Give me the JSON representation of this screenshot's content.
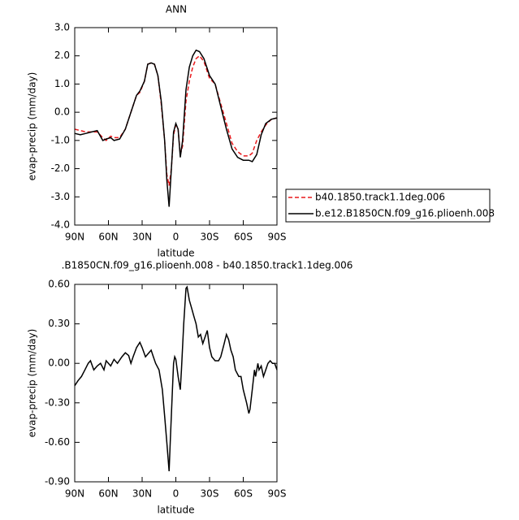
{
  "chart_data": [
    {
      "type": "line",
      "title": "ANN",
      "xlabel": "latitude",
      "ylabel": "evap-precip (mm/day)",
      "x": [
        90,
        85,
        80,
        75,
        70,
        65,
        62,
        58,
        55,
        50,
        45,
        40,
        35,
        32,
        28,
        25,
        22,
        19,
        16,
        13,
        10,
        8,
        6,
        4,
        2,
        0,
        -2,
        -4,
        -6,
        -9,
        -12,
        -15,
        -18,
        -21,
        -25,
        -30,
        -35,
        -40,
        -45,
        -50,
        -55,
        -60,
        -65,
        -68,
        -72,
        -76,
        -80,
        -85,
        -90
      ],
      "xlim": [
        90,
        -90
      ],
      "xticks": [
        {
          "value": 90,
          "label": "90N"
        },
        {
          "value": 60,
          "label": "60N"
        },
        {
          "value": 30,
          "label": "30N"
        },
        0,
        {
          "value": -30,
          "label": "30S"
        },
        {
          "value": -60,
          "label": "60S"
        },
        {
          "value": -90,
          "label": "90S"
        }
      ],
      "ylim": [
        -4,
        3
      ],
      "yticks": [
        {
          "value": 3,
          "label": "3.0"
        },
        {
          "value": 2,
          "label": "2.0"
        },
        {
          "value": 1,
          "label": "1.0"
        },
        {
          "value": 0,
          "label": "0.0"
        },
        {
          "value": -1,
          "label": "-1.0"
        },
        {
          "value": -2,
          "label": "-2.0"
        },
        {
          "value": -3,
          "label": "-3.0"
        },
        {
          "value": -4,
          "label": "-4.0"
        }
      ],
      "legend": "outside-right",
      "series": [
        {
          "name": "b40.1850.track1.1deg.006",
          "color": "#e8191c",
          "line_style": "dashed",
          "values": [
            -0.6,
            -0.65,
            -0.7,
            -0.7,
            -0.7,
            -0.9,
            -1.0,
            -0.85,
            -0.9,
            -0.9,
            -0.6,
            0.0,
            0.6,
            0.7,
            1.1,
            1.7,
            1.75,
            1.7,
            1.3,
            0.3,
            -1.0,
            -2.2,
            -2.6,
            -2.0,
            -0.8,
            -0.45,
            -0.6,
            -1.5,
            -1.2,
            0.4,
            1.1,
            1.6,
            1.9,
            2.0,
            1.8,
            1.2,
            1.0,
            0.3,
            -0.4,
            -1.1,
            -1.4,
            -1.55,
            -1.55,
            -1.45,
            -1.0,
            -0.7,
            -0.45,
            -0.25,
            -0.2
          ]
        },
        {
          "name": "b.e12.B1850CN.f09_g16.plioenh.008",
          "color": "#000000",
          "line_style": "solid",
          "values": [
            -0.75,
            -0.8,
            -0.75,
            -0.7,
            -0.65,
            -1.0,
            -0.95,
            -0.9,
            -1.0,
            -0.95,
            -0.6,
            0.0,
            0.6,
            0.75,
            1.1,
            1.7,
            1.75,
            1.7,
            1.3,
            0.4,
            -1.0,
            -2.4,
            -3.35,
            -2.0,
            -0.7,
            -0.4,
            -0.6,
            -1.6,
            -1.0,
            0.8,
            1.6,
            2.0,
            2.2,
            2.15,
            1.9,
            1.3,
            1.0,
            0.2,
            -0.6,
            -1.3,
            -1.6,
            -1.7,
            -1.7,
            -1.75,
            -1.5,
            -0.8,
            -0.4,
            -0.25,
            -0.2
          ]
        }
      ]
    },
    {
      "type": "line",
      "title": ".B1850CN.f09_g16.plioenh.008 - b40.1850.track1.1deg.006",
      "xlabel": "latitude",
      "ylabel": "evap-precip (mm/day)",
      "x": [
        90,
        87,
        84,
        81,
        78,
        76,
        73,
        70,
        67,
        64,
        62,
        58,
        55,
        52,
        48,
        45,
        42,
        40,
        38,
        35,
        32,
        30,
        27,
        24,
        22,
        20,
        18,
        15,
        12,
        10,
        8,
        6,
        5,
        3,
        2,
        1,
        0,
        -2,
        -4,
        -5,
        -7,
        -9,
        -10,
        -12,
        -14,
        -16,
        -18,
        -20,
        -22,
        -24,
        -26,
        -28,
        -30,
        -32,
        -35,
        -38,
        -40,
        -43,
        -45,
        -47,
        -49,
        -51,
        -53,
        -56,
        -58,
        -60,
        -63,
        -65,
        -66,
        -68,
        -70,
        -71,
        -73,
        -74,
        -76,
        -78,
        -80,
        -82,
        -84,
        -86,
        -88,
        -90
      ],
      "xlim": [
        90,
        -90
      ],
      "xticks": [
        {
          "value": 90,
          "label": "90N"
        },
        {
          "value": 60,
          "label": "60N"
        },
        {
          "value": 30,
          "label": "30N"
        },
        0,
        {
          "value": -30,
          "label": "30S"
        },
        {
          "value": -60,
          "label": "60S"
        },
        {
          "value": -90,
          "label": "90S"
        }
      ],
      "ylim": [
        -0.9,
        0.6
      ],
      "yticks": [
        {
          "value": 0.6,
          "label": "0.60"
        },
        {
          "value": 0.3,
          "label": "0.30"
        },
        {
          "value": 0,
          "label": "0.00"
        },
        {
          "value": -0.3,
          "label": "-0.30"
        },
        {
          "value": -0.6,
          "label": "-0.60"
        },
        {
          "value": -0.9,
          "label": "-0.90"
        }
      ],
      "series": [
        {
          "color": "#000000",
          "line_style": "solid",
          "values": [
            -0.17,
            -0.13,
            -0.1,
            -0.05,
            0.0,
            0.02,
            -0.05,
            -0.02,
            0.0,
            -0.05,
            0.02,
            -0.02,
            0.03,
            0.0,
            0.05,
            0.08,
            0.06,
            0.0,
            0.05,
            0.12,
            0.16,
            0.12,
            0.05,
            0.08,
            0.1,
            0.05,
            0.0,
            -0.05,
            -0.2,
            -0.4,
            -0.6,
            -0.82,
            -0.6,
            -0.2,
            0.0,
            0.05,
            0.03,
            -0.1,
            -0.2,
            -0.05,
            0.3,
            0.57,
            0.58,
            0.48,
            0.42,
            0.36,
            0.3,
            0.2,
            0.22,
            0.15,
            0.2,
            0.25,
            0.12,
            0.05,
            0.02,
            0.02,
            0.05,
            0.15,
            0.22,
            0.18,
            0.1,
            0.05,
            -0.05,
            -0.1,
            -0.1,
            -0.2,
            -0.3,
            -0.38,
            -0.35,
            -0.2,
            -0.05,
            -0.1,
            0.0,
            -0.05,
            -0.02,
            -0.1,
            -0.05,
            0.0,
            0.02,
            0.0,
            0.0,
            -0.05
          ]
        }
      ]
    }
  ]
}
